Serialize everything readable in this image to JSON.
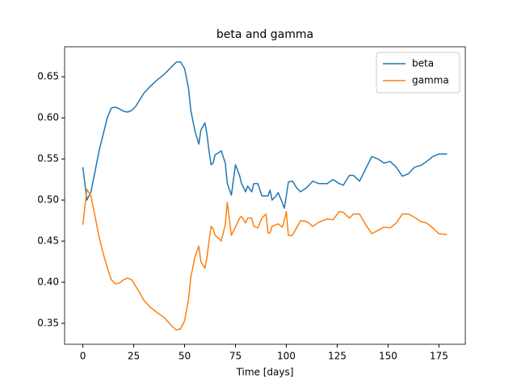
{
  "chart_data": {
    "type": "line",
    "title": "beta and gamma",
    "x_label": "Time [days]",
    "x": [
      0,
      2,
      4,
      6,
      8,
      10,
      12,
      14,
      16,
      18,
      20,
      22,
      24,
      26,
      28,
      30,
      33,
      36,
      40,
      44,
      46,
      48,
      50,
      52,
      53,
      55,
      57,
      58,
      60,
      61,
      62,
      63,
      64,
      65,
      67,
      68,
      70,
      71,
      73,
      75,
      77,
      78,
      80,
      81,
      83,
      84,
      86,
      88,
      90,
      91,
      92,
      93,
      95,
      96,
      98,
      99,
      100,
      101,
      103,
      105,
      107,
      110,
      113,
      116,
      120,
      123,
      126,
      128,
      131,
      133,
      136,
      139,
      142,
      145,
      148,
      151,
      154,
      157,
      160,
      163,
      166,
      169,
      172,
      175,
      179
    ],
    "series": [
      {
        "name": "beta",
        "color": "#1f77b4",
        "values": [
          0.54,
          0.5,
          0.51,
          0.535,
          0.56,
          0.58,
          0.6,
          0.612,
          0.613,
          0.611,
          0.608,
          0.607,
          0.609,
          0.614,
          0.622,
          0.63,
          0.638,
          0.645,
          0.653,
          0.663,
          0.668,
          0.668,
          0.66,
          0.635,
          0.61,
          0.585,
          0.568,
          0.585,
          0.594,
          0.58,
          0.56,
          0.543,
          0.545,
          0.555,
          0.558,
          0.56,
          0.545,
          0.52,
          0.506,
          0.543,
          0.53,
          0.52,
          0.51,
          0.517,
          0.51,
          0.52,
          0.52,
          0.505,
          0.505,
          0.505,
          0.512,
          0.5,
          0.505,
          0.509,
          0.497,
          0.49,
          0.505,
          0.522,
          0.523,
          0.515,
          0.51,
          0.515,
          0.523,
          0.52,
          0.52,
          0.525,
          0.52,
          0.518,
          0.53,
          0.53,
          0.523,
          0.538,
          0.553,
          0.55,
          0.545,
          0.547,
          0.54,
          0.529,
          0.532,
          0.54,
          0.542,
          0.547,
          0.553,
          0.556,
          0.556
        ]
      },
      {
        "name": "gamma",
        "color": "#ff7f0e",
        "values": [
          0.47,
          0.513,
          0.505,
          0.48,
          0.455,
          0.435,
          0.418,
          0.403,
          0.398,
          0.399,
          0.403,
          0.405,
          0.403,
          0.395,
          0.387,
          0.378,
          0.37,
          0.364,
          0.357,
          0.346,
          0.342,
          0.343,
          0.353,
          0.38,
          0.405,
          0.43,
          0.444,
          0.425,
          0.417,
          0.43,
          0.45,
          0.468,
          0.465,
          0.457,
          0.453,
          0.45,
          0.47,
          0.497,
          0.457,
          0.467,
          0.478,
          0.48,
          0.472,
          0.478,
          0.478,
          0.468,
          0.466,
          0.478,
          0.483,
          0.46,
          0.46,
          0.468,
          0.47,
          0.471,
          0.467,
          0.475,
          0.486,
          0.457,
          0.457,
          0.466,
          0.475,
          0.474,
          0.468,
          0.473,
          0.477,
          0.476,
          0.486,
          0.485,
          0.478,
          0.483,
          0.483,
          0.47,
          0.459,
          0.463,
          0.467,
          0.466,
          0.472,
          0.483,
          0.483,
          0.479,
          0.474,
          0.472,
          0.466,
          0.459,
          0.458
        ]
      }
    ],
    "xlim": [
      -8.95,
      187.95
    ],
    "ylim": [
      0.3245,
      0.6865
    ],
    "xticks": [
      0,
      25,
      50,
      75,
      100,
      125,
      150,
      175
    ],
    "yticks": [
      0.35,
      {
        "value": 0.4,
        "label": "0.40"
      },
      0.45,
      {
        "value": 0.5,
        "label": "0.50"
      },
      0.55,
      {
        "value": 0.6,
        "label": "0.60"
      },
      0.65
    ],
    "legend": "upper right"
  }
}
